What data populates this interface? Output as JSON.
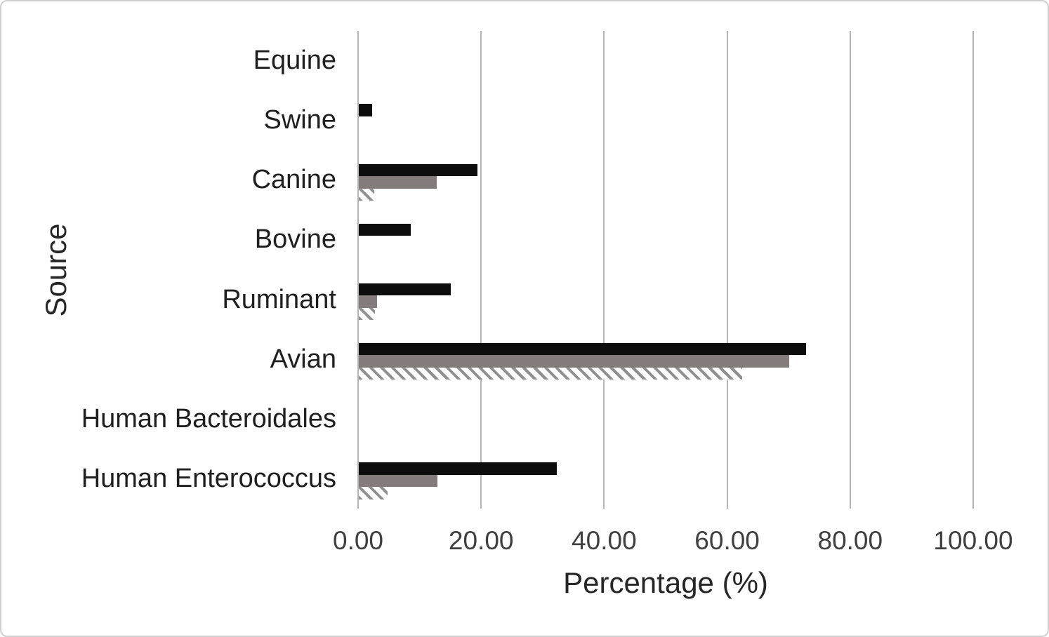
{
  "figure": {
    "background_color": "#ffffff",
    "border_color": "#cfcfcf"
  },
  "chart_data": {
    "type": "bar",
    "orientation": "horizontal",
    "title": "",
    "xlabel": "Percentage (%)",
    "ylabel": "Source",
    "xlim": [
      0,
      100
    ],
    "xticks": [
      0,
      20,
      40,
      60,
      80,
      100
    ],
    "xtick_labels": [
      "0.00",
      "20.00",
      "40.00",
      "60.00",
      "80.00",
      "100.00"
    ],
    "grid": "vertical-gridlines-on",
    "legend_position": "none",
    "categories": [
      "Equine",
      "Swine",
      "Canine",
      "Bovine",
      "Ruminant",
      "Avian",
      "Human Bacteroidales",
      "Human Enterococcus"
    ],
    "series": [
      {
        "name": "black-solid-series",
        "style": "solid",
        "color": "#0d0d0d",
        "values": [
          0,
          2.2,
          19.3,
          8.5,
          14.9,
          72.7,
          0,
          32.2
        ]
      },
      {
        "name": "gray-solid-series",
        "style": "solid",
        "color": "#847b7d",
        "values": [
          0,
          0,
          12.7,
          0,
          3.0,
          70.0,
          0,
          12.8
        ]
      },
      {
        "name": "hatched-series",
        "style": "diagonal-hatch",
        "color": "#8f8f8f",
        "values": [
          0,
          0,
          2.5,
          0,
          2.6,
          62.3,
          0,
          4.7
        ]
      }
    ]
  }
}
